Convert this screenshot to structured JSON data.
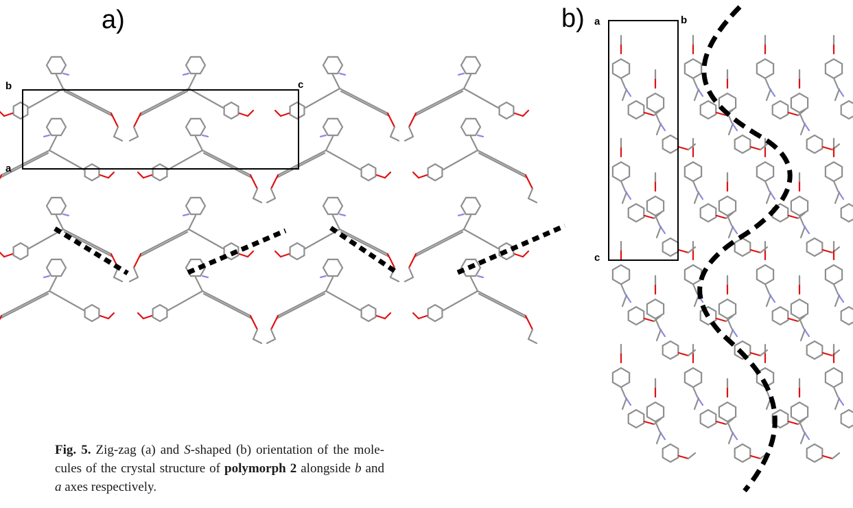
{
  "panels": {
    "a": {
      "label": "a)",
      "axes": {
        "b": "b",
        "c": "c",
        "a": "a"
      }
    },
    "b": {
      "label": "b)",
      "axes": {
        "a": "a",
        "b": "b",
        "c": "c"
      }
    }
  },
  "caption": {
    "fig": "Fig. 5.",
    "t1": " Zig-zag (a) and ",
    "s": "S",
    "t2": "-shaped (b) orientation of the mole-cules of the crystal structure of ",
    "poly": "polymorph 2",
    "t3": " alongside ",
    "axis_b": "b",
    "t4": " and ",
    "axis_a": "a",
    "t5": " axes respectively."
  },
  "colors": {
    "bond": "#8f8f8f",
    "oxygen": "#e01010",
    "nitrogen": "#8a8ae8",
    "guide": "#000000"
  }
}
